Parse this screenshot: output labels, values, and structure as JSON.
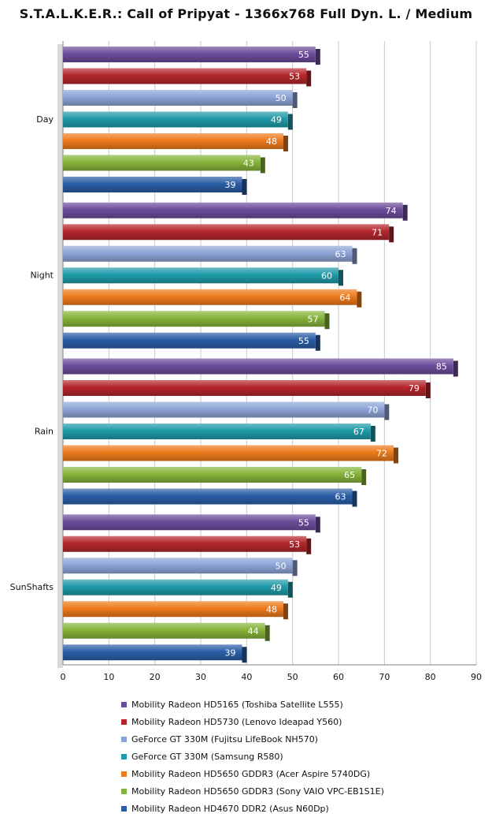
{
  "chart_data": {
    "type": "bar",
    "orientation": "horizontal",
    "title": "S.T.A.L.K.E.R.: Call of Pripyat - 1366x768 Full Dyn. L. / Medium",
    "categories": [
      "Day",
      "Night",
      "Rain",
      "SunShafts"
    ],
    "xlim": [
      0,
      90
    ],
    "xticks": [
      0,
      10,
      20,
      30,
      40,
      50,
      60,
      70,
      80,
      90
    ],
    "grid": true,
    "legend_position": "bottom",
    "series": [
      {
        "name": "Mobility Radeon HD5165 (Toshiba Satellite L555)",
        "color": "#6b4c9a",
        "values": [
          55,
          74,
          85,
          55
        ]
      },
      {
        "name": "Mobility Radeon HD5730 (Lenovo Ideapad Y560)",
        "color": "#b3262b",
        "values": [
          53,
          71,
          79,
          53
        ]
      },
      {
        "name": "GeForce GT 330M (Fujitsu LifeBook NH570)",
        "color": "#8da4d6",
        "values": [
          50,
          63,
          70,
          50
        ]
      },
      {
        "name": "GeForce GT 330M (Samsung R580)",
        "color": "#1f9aa8",
        "values": [
          49,
          60,
          67,
          49
        ]
      },
      {
        "name": "Mobility Radeon HD5650 GDDR3 (Acer Aspire 5740DG)",
        "color": "#ee7a1c",
        "values": [
          48,
          64,
          72,
          48
        ]
      },
      {
        "name": "Mobility Radeon HD5650 GDDR3 (Sony VAIO VPC-EB1S1E)",
        "color": "#86b33a",
        "values": [
          43,
          57,
          65,
          44
        ]
      },
      {
        "name": "Mobility Radeon HD4670 DDR2 (Asus N60Dp)",
        "color": "#2b5ea6",
        "values": [
          39,
          55,
          63,
          39
        ]
      }
    ]
  }
}
